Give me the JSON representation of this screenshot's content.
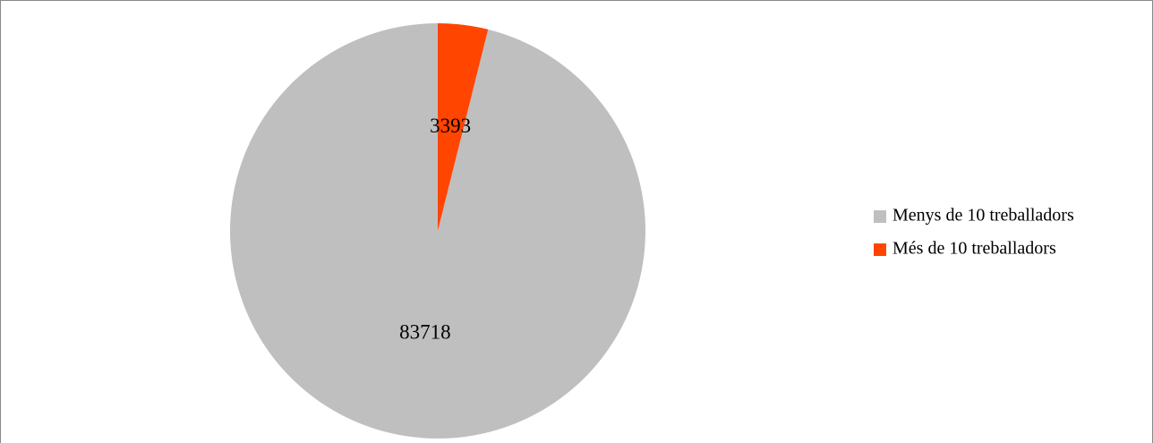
{
  "chart_data": {
    "type": "pie",
    "categories": [
      "Menys de 10 treballadors",
      "Més de 10 treballadors"
    ],
    "values": [
      83718,
      3393
    ],
    "colors": [
      "#bfbfbf",
      "#ff4500"
    ],
    "legend": "right"
  }
}
